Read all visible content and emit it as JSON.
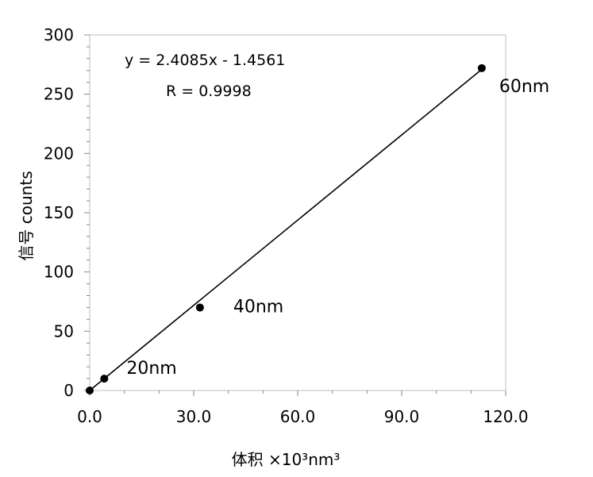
{
  "chart_data": {
    "type": "scatter",
    "xlabel": "体积 ×10³nm³",
    "ylabel": "信号 counts",
    "xlim": [
      0,
      120
    ],
    "ylim": [
      0,
      300
    ],
    "x_ticks": [
      "0.0",
      "30.0",
      "60.0",
      "90.0",
      "120.0"
    ],
    "y_ticks": [
      "0",
      "50",
      "100",
      "150",
      "200",
      "250",
      "300"
    ],
    "points": [
      {
        "x": 0.0,
        "y": 0,
        "label": ""
      },
      {
        "x": 4.2,
        "y": 10,
        "label": "20nm"
      },
      {
        "x": 31.8,
        "y": 70,
        "label": "40nm"
      },
      {
        "x": 113.1,
        "y": 272,
        "label": "60nm"
      }
    ],
    "trendline": {
      "slope": 2.4085,
      "intercept": -1.4561
    },
    "equation": "y = 2.4085x - 1.4561",
    "r_value": "R = 0.9998",
    "grid": false,
    "legend": "none"
  }
}
